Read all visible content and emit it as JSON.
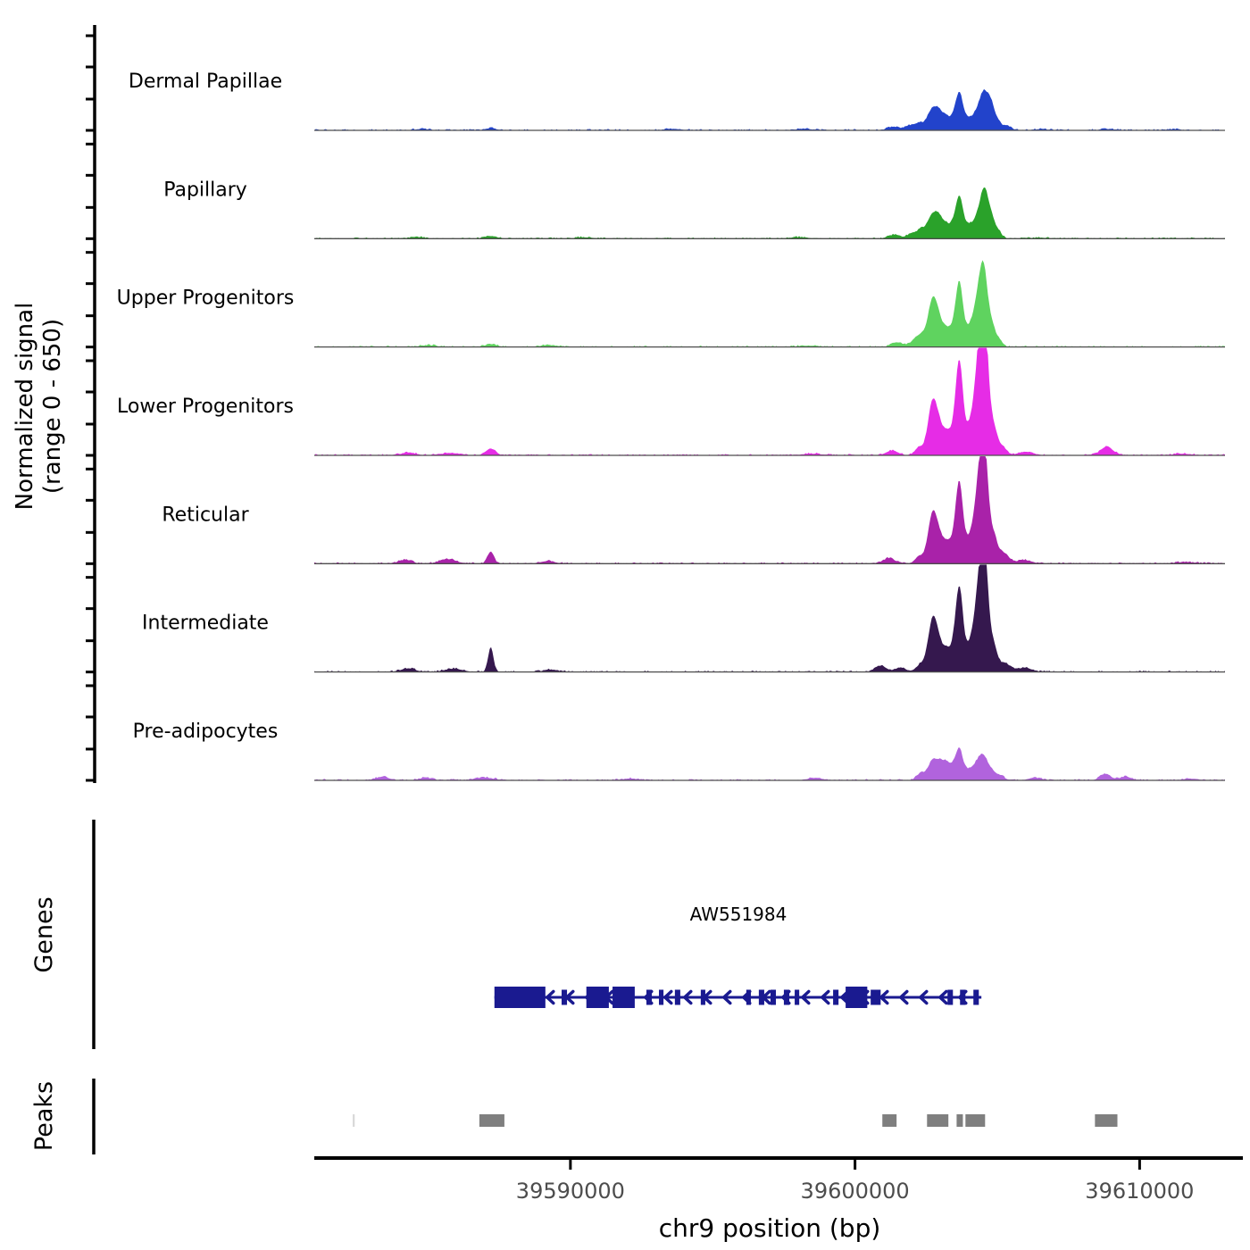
{
  "chart_data": {
    "type": "area",
    "title": "",
    "xlabel": "chr9 position (bp)",
    "ylabel_line1": "Normalized signal",
    "ylabel_line2": "(range 0 - 650)",
    "y_range": [
      0,
      650
    ],
    "x_domain_bp": [
      39581000,
      39613000
    ],
    "x_ticks": [
      {
        "bp": 39590000,
        "label": "39590000"
      },
      {
        "bp": 39600000,
        "label": "39600000"
      },
      {
        "bp": 39610000,
        "label": "39610000"
      }
    ],
    "baseline_color": "#4d4d4d",
    "tracks": [
      {
        "label": "Dermal Papillae",
        "color": "#2243cb",
        "peaks": [
          [
            39602740,
            140,
            200
          ],
          [
            39602990,
            60,
            120
          ],
          [
            39603210,
            68,
            110
          ],
          [
            39603440,
            73,
            110
          ],
          [
            39603665,
            226,
            120
          ],
          [
            39603960,
            66,
            150
          ],
          [
            39604340,
            130,
            170
          ],
          [
            39604560,
            175,
            130
          ],
          [
            39604790,
            148,
            120
          ],
          [
            39605030,
            50,
            120
          ],
          [
            39605360,
            26,
            140
          ],
          [
            39587200,
            12,
            200
          ],
          [
            39601350,
            22,
            200
          ],
          [
            39601900,
            30,
            150
          ],
          [
            39602250,
            40,
            130
          ],
          [
            39584800,
            8,
            250
          ],
          [
            39593600,
            8,
            300
          ],
          [
            39598200,
            8,
            300
          ],
          [
            39606600,
            6,
            250
          ],
          [
            39608900,
            8,
            250
          ],
          [
            39611200,
            6,
            250
          ]
        ]
      },
      {
        "label": "Papillary",
        "color": "#2aa22a",
        "peaks": [
          [
            39602740,
            158,
            200
          ],
          [
            39602990,
            68,
            120
          ],
          [
            39603210,
            73,
            110
          ],
          [
            39603440,
            80,
            110
          ],
          [
            39603665,
            254,
            120
          ],
          [
            39603960,
            75,
            150
          ],
          [
            39604340,
            145,
            170
          ],
          [
            39604560,
            240,
            130
          ],
          [
            39604790,
            120,
            120
          ],
          [
            39605030,
            45,
            120
          ],
          [
            39587200,
            16,
            220
          ],
          [
            39601400,
            25,
            200
          ],
          [
            39602000,
            34,
            150
          ],
          [
            39602300,
            45,
            130
          ],
          [
            39584600,
            10,
            250
          ],
          [
            39590500,
            8,
            300
          ],
          [
            39598000,
            8,
            300
          ],
          [
            39606500,
            6,
            250
          ]
        ]
      },
      {
        "label": "Upper Progenitors",
        "color": "#5fd35f",
        "peaks": [
          [
            39602740,
            310,
            170
          ],
          [
            39603000,
            90,
            120
          ],
          [
            39603220,
            100,
            110
          ],
          [
            39603450,
            105,
            110
          ],
          [
            39603665,
            384,
            120
          ],
          [
            39603970,
            100,
            160
          ],
          [
            39604340,
            310,
            170
          ],
          [
            39604540,
            355,
            130
          ],
          [
            39604800,
            125,
            120
          ],
          [
            39605050,
            45,
            130
          ],
          [
            39587200,
            16,
            220
          ],
          [
            39601500,
            28,
            200
          ],
          [
            39602100,
            45,
            150
          ],
          [
            39602350,
            60,
            130
          ],
          [
            39585000,
            10,
            300
          ],
          [
            39589200,
            12,
            250
          ],
          [
            39598300,
            8,
            300
          ]
        ]
      },
      {
        "label": "Lower Progenitors",
        "color": "#e62ce6",
        "peaks": [
          [
            39602740,
            350,
            170
          ],
          [
            39603010,
            105,
            120
          ],
          [
            39603230,
            125,
            110
          ],
          [
            39603460,
            135,
            115
          ],
          [
            39603665,
            540,
            120
          ],
          [
            39604000,
            160,
            200
          ],
          [
            39604380,
            595,
            170
          ],
          [
            39604560,
            622,
            130
          ],
          [
            39604860,
            170,
            130
          ],
          [
            39605160,
            55,
            150
          ],
          [
            39587200,
            42,
            160
          ],
          [
            39601300,
            30,
            200
          ],
          [
            39602250,
            50,
            140
          ],
          [
            39608850,
            52,
            220
          ],
          [
            39584300,
            16,
            250
          ],
          [
            39585800,
            14,
            300
          ],
          [
            39598500,
            10,
            300
          ],
          [
            39606000,
            22,
            250
          ],
          [
            39611500,
            10,
            300
          ]
        ]
      },
      {
        "label": "Reticular",
        "color": "#a922a9",
        "peaks": [
          [
            39602740,
            330,
            170
          ],
          [
            39603010,
            95,
            120
          ],
          [
            39603230,
            115,
            110
          ],
          [
            39603460,
            125,
            115
          ],
          [
            39603665,
            465,
            120
          ],
          [
            39604000,
            140,
            200
          ],
          [
            39604380,
            490,
            170
          ],
          [
            39604560,
            509,
            130
          ],
          [
            39604860,
            160,
            130
          ],
          [
            39605200,
            68,
            200
          ],
          [
            39587200,
            74,
            110
          ],
          [
            39584200,
            24,
            220
          ],
          [
            39585700,
            28,
            280
          ],
          [
            39589200,
            16,
            250
          ],
          [
            39601200,
            34,
            200
          ],
          [
            39602250,
            45,
            140
          ],
          [
            39605950,
            22,
            250
          ],
          [
            39611600,
            10,
            300
          ]
        ]
      },
      {
        "label": "Intermediate",
        "color": "#35184e",
        "peaks": [
          [
            39602740,
            340,
            170
          ],
          [
            39603010,
            100,
            120
          ],
          [
            39603230,
            120,
            110
          ],
          [
            39603460,
            135,
            115
          ],
          [
            39603665,
            480,
            120
          ],
          [
            39604000,
            150,
            200
          ],
          [
            39604380,
            510,
            170
          ],
          [
            39604560,
            526,
            130
          ],
          [
            39604860,
            160,
            130
          ],
          [
            39605250,
            56,
            200
          ],
          [
            39587200,
            158,
            90
          ],
          [
            39584300,
            22,
            250
          ],
          [
            39585900,
            20,
            300
          ],
          [
            39589300,
            14,
            250
          ],
          [
            39600900,
            40,
            200
          ],
          [
            39601600,
            28,
            180
          ],
          [
            39602300,
            45,
            140
          ],
          [
            39605950,
            26,
            250
          ]
        ]
      },
      {
        "label": "Pre-adipocytes",
        "color": "#b163dd",
        "peaks": [
          [
            39602740,
            125,
            180
          ],
          [
            39603020,
            75,
            130
          ],
          [
            39603230,
            85,
            120
          ],
          [
            39603450,
            70,
            120
          ],
          [
            39603665,
            181,
            120
          ],
          [
            39603980,
            56,
            170
          ],
          [
            39604330,
            90,
            180
          ],
          [
            39604530,
            102,
            160
          ],
          [
            39604800,
            45,
            140
          ],
          [
            39605100,
            28,
            150
          ],
          [
            39583400,
            22,
            220
          ],
          [
            39584900,
            16,
            200
          ],
          [
            39587000,
            16,
            300
          ],
          [
            39592100,
            10,
            250
          ],
          [
            39598600,
            14,
            250
          ],
          [
            39602300,
            40,
            140
          ],
          [
            39608800,
            40,
            180
          ],
          [
            39609500,
            22,
            200
          ],
          [
            39606300,
            16,
            200
          ],
          [
            39611800,
            10,
            250
          ]
        ]
      }
    ],
    "genes": {
      "section_label": "Genes",
      "gene": {
        "name": "AW551984",
        "color": "#1a1a90",
        "strand": "-",
        "start_bp": 39587330,
        "end_bp": 39604440,
        "exons_large": [
          [
            39587330,
            39589120
          ],
          [
            39590560,
            39591350
          ],
          [
            39591480,
            39592260
          ],
          [
            39599670,
            39600430
          ]
        ],
        "exons_small": [
          [
            39589690,
            39589880
          ],
          [
            39592670,
            39592860
          ],
          [
            39593110,
            39593270
          ],
          [
            39593670,
            39593860
          ],
          [
            39594580,
            39594740
          ],
          [
            39596180,
            39596340
          ],
          [
            39596620,
            39596810
          ],
          [
            39597030,
            39597220
          ],
          [
            39597500,
            39597690
          ],
          [
            39597880,
            39598040
          ],
          [
            39599230,
            39599420
          ],
          [
            39600550,
            39600900
          ],
          [
            39603250,
            39603440
          ],
          [
            39603690,
            39603880
          ],
          [
            39604160,
            39604350
          ]
        ]
      }
    },
    "peaks_track": {
      "section_label": "Peaks",
      "color": "#7f7f7f",
      "light_color": "#d9d9d9",
      "boxes": [
        {
          "start_bp": 39582350,
          "end_bp": 39582420,
          "light": true
        },
        {
          "start_bp": 39586800,
          "end_bp": 39587680,
          "light": false
        },
        {
          "start_bp": 39600960,
          "end_bp": 39601460,
          "light": false
        },
        {
          "start_bp": 39602530,
          "end_bp": 39603280,
          "light": false
        },
        {
          "start_bp": 39603570,
          "end_bp": 39603790,
          "light": false
        },
        {
          "start_bp": 39603880,
          "end_bp": 39604570,
          "light": false
        },
        {
          "start_bp": 39608430,
          "end_bp": 39609220,
          "light": false
        }
      ]
    }
  }
}
